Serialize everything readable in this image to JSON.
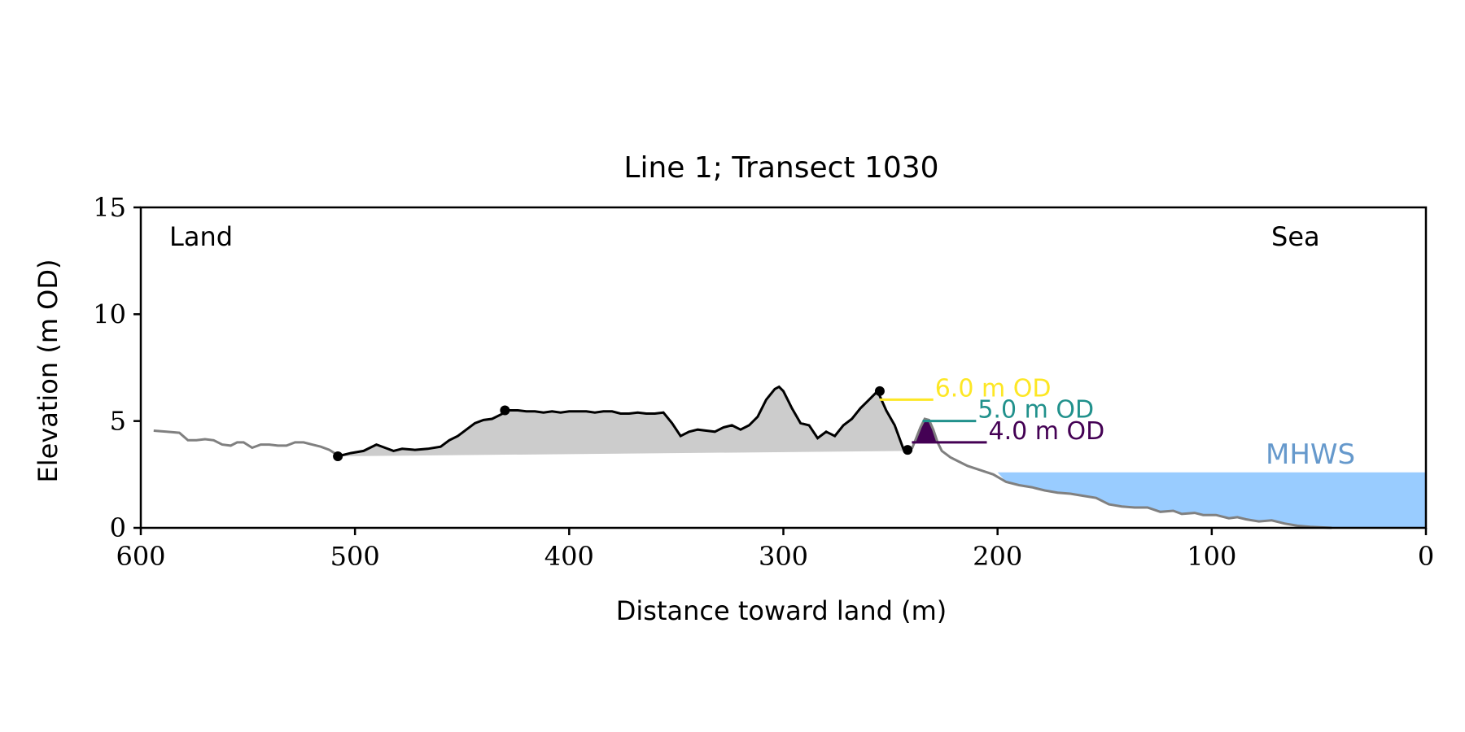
{
  "chart_data": {
    "type": "line",
    "title": "Line 1; Transect 1030",
    "xlabel": "Distance toward land (m)",
    "ylabel": "Elevation (m OD)",
    "xlim": [
      600,
      0
    ],
    "ylim": [
      0,
      15
    ],
    "x_ticks": [
      600,
      500,
      400,
      300,
      200,
      100,
      0
    ],
    "y_ticks": [
      0,
      5,
      10,
      15
    ],
    "grid": false,
    "corner_labels": {
      "left": "Land",
      "right": "Sea"
    },
    "colors": {
      "profile_full": "#808080",
      "profile_dune": "#000000",
      "dune_fill": "#cccccc",
      "mhws_fill": "#99ccff",
      "mhws_text": "#6699cc",
      "level_6": "#fde725",
      "level_5": "#21918c",
      "level_4": "#440154"
    },
    "mhws": {
      "label": "MHWS",
      "elevation": 2.6,
      "x_from": 200,
      "x_to": 0
    },
    "levels": [
      {
        "label": "6.0 m OD",
        "elevation": 6.0,
        "x_from": 255,
        "x_to": 230,
        "color": "#fde725"
      },
      {
        "label": "5.0 m OD",
        "elevation": 5.0,
        "x_from": 235,
        "x_to": 210,
        "color": "#21918c"
      },
      {
        "label": "4.0 m OD",
        "elevation": 4.0,
        "x_from": 240,
        "x_to": 205,
        "color": "#440154"
      }
    ],
    "series": [
      {
        "role": "full-profile",
        "x": [
          594,
          588,
          582,
          578,
          574,
          570,
          566,
          562,
          558,
          555,
          552,
          548,
          544,
          540,
          536,
          532,
          528,
          524,
          520,
          516,
          512,
          508
        ],
        "y": [
          4.55,
          4.5,
          4.45,
          4.1,
          4.1,
          4.15,
          4.1,
          3.9,
          3.85,
          4.0,
          4.0,
          3.75,
          3.9,
          3.9,
          3.85,
          3.85,
          4.0,
          4.0,
          3.9,
          3.8,
          3.65,
          3.4
        ]
      },
      {
        "role": "dune-profile",
        "x": [
          508,
          502,
          496,
          490,
          486,
          482,
          478,
          472,
          466,
          460,
          456,
          452,
          448,
          444,
          440,
          436,
          432,
          428,
          424,
          420,
          416,
          412,
          408,
          404,
          400,
          396,
          392,
          388,
          384,
          380,
          376,
          372,
          368,
          364,
          360,
          356,
          352,
          348,
          344,
          340,
          336,
          332,
          328,
          324,
          320,
          316,
          312,
          308,
          304,
          302,
          300,
          298,
          296,
          292,
          288,
          284,
          280,
          276,
          272,
          268,
          264,
          260,
          256,
          252,
          248,
          244,
          240
        ],
        "y": [
          3.35,
          3.5,
          3.6,
          3.9,
          3.75,
          3.6,
          3.7,
          3.65,
          3.7,
          3.8,
          4.1,
          4.3,
          4.6,
          4.9,
          5.05,
          5.1,
          5.3,
          5.5,
          5.5,
          5.45,
          5.45,
          5.4,
          5.45,
          5.4,
          5.45,
          5.45,
          5.45,
          5.4,
          5.45,
          5.45,
          5.35,
          5.35,
          5.4,
          5.35,
          5.35,
          5.4,
          4.9,
          4.3,
          4.5,
          4.6,
          4.55,
          4.5,
          4.7,
          4.8,
          4.6,
          4.8,
          5.2,
          6.0,
          6.5,
          6.6,
          6.4,
          6.0,
          5.6,
          4.9,
          4.8,
          4.2,
          4.5,
          4.3,
          4.8,
          5.1,
          5.6,
          6.0,
          6.4,
          5.5,
          4.8,
          3.7,
          3.6
        ]
      },
      {
        "role": "seaward-profile",
        "x": [
          240,
          238,
          236,
          234,
          232,
          230,
          228,
          226,
          222,
          218,
          214,
          208,
          202,
          196,
          190,
          184,
          178,
          172,
          166,
          160,
          154,
          148,
          142,
          136,
          130,
          124,
          118,
          114,
          108,
          104,
          98,
          92,
          88,
          84,
          78,
          72,
          66,
          60,
          54,
          48,
          44
        ],
        "y": [
          3.7,
          4.2,
          4.7,
          5.1,
          5.05,
          4.6,
          4.0,
          3.6,
          3.3,
          3.1,
          2.9,
          2.7,
          2.5,
          2.15,
          2.0,
          1.9,
          1.75,
          1.65,
          1.6,
          1.5,
          1.4,
          1.1,
          1.0,
          0.95,
          0.95,
          0.75,
          0.8,
          0.65,
          0.7,
          0.6,
          0.6,
          0.45,
          0.5,
          0.4,
          0.3,
          0.35,
          0.2,
          0.1,
          0.05,
          0.02,
          0.0
        ]
      }
    ],
    "markers": [
      {
        "x": 508,
        "y": 3.35
      },
      {
        "x": 430,
        "y": 5.5
      },
      {
        "x": 255,
        "y": 6.4
      },
      {
        "x": 242,
        "y": 3.65
      }
    ]
  }
}
